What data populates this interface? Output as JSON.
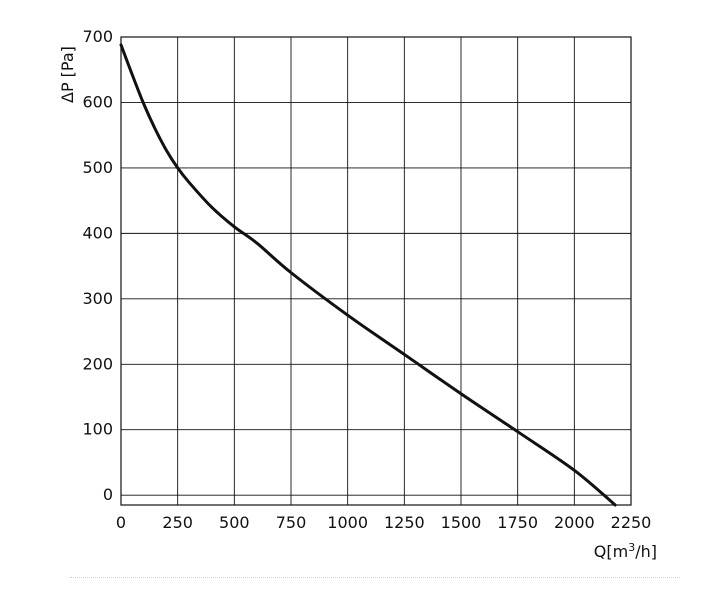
{
  "chart_data": {
    "type": "line",
    "title": "",
    "xlabel": "Q[m3/h]",
    "ylabel": "ΔP [Pa]",
    "xlim": [
      0,
      2250
    ],
    "ylim": [
      -15,
      700
    ],
    "x_ticks": [
      0,
      250,
      500,
      750,
      1000,
      1250,
      1500,
      1750,
      2000,
      2250
    ],
    "x_tick_labels": [
      "0",
      "250",
      "500",
      "750",
      "1000",
      "1250",
      "1500",
      "1750",
      "2000",
      "2250"
    ],
    "y_ticks": [
      0,
      100,
      200,
      300,
      400,
      500,
      600,
      700
    ],
    "y_tick_labels": [
      "0",
      "100",
      "200",
      "300",
      "400",
      "500",
      "600",
      "700"
    ],
    "grid": true,
    "series": [
      {
        "x": [
          0,
          50,
          100,
          150,
          200,
          250,
          300,
          400,
          500,
          600,
          750,
          1000,
          1250,
          1500,
          1750,
          2000,
          2180
        ],
        "y": [
          688,
          642,
          598,
          560,
          527,
          500,
          478,
          440,
          410,
          385,
          340,
          275,
          215,
          155,
          97,
          38,
          -15
        ],
        "color": "#111111"
      }
    ]
  }
}
